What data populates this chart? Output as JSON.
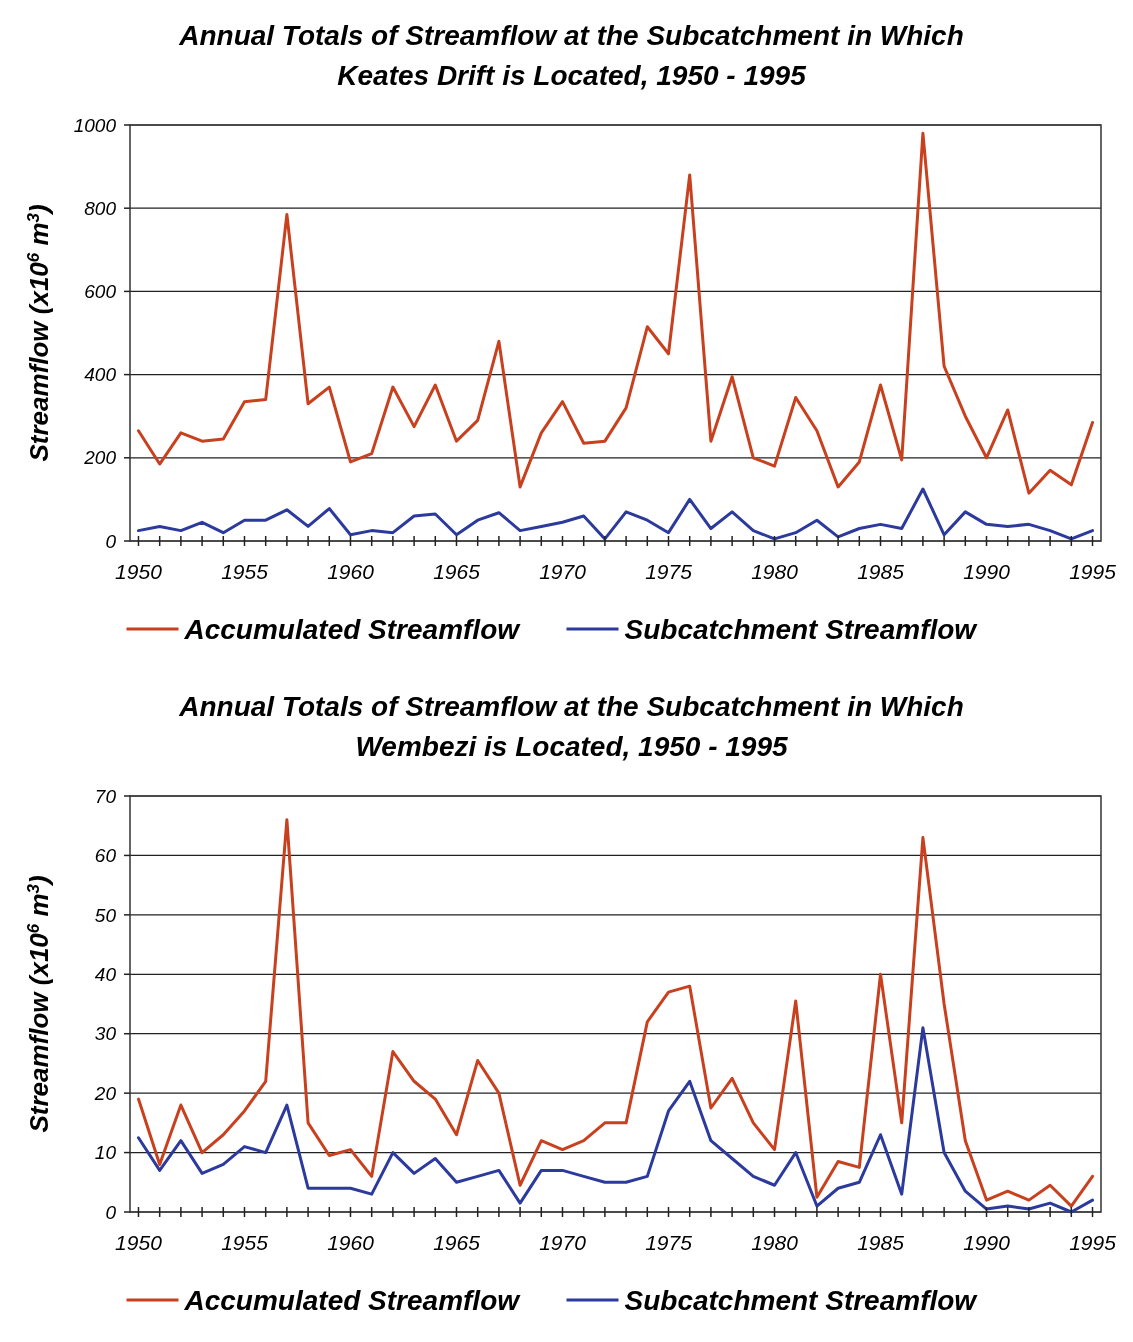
{
  "chart_data": [
    {
      "type": "line",
      "title": "Annual Totals of Streamflow at the Subcatchment in Which Keates Drift is Located, 1950 - 1995",
      "ylabel": "Streamflow (x10$^{6}$ m$^{3}$)",
      "x": [
        1950,
        1951,
        1952,
        1953,
        1954,
        1955,
        1956,
        1957,
        1958,
        1959,
        1960,
        1961,
        1962,
        1963,
        1964,
        1965,
        1966,
        1967,
        1968,
        1969,
        1970,
        1971,
        1972,
        1973,
        1974,
        1975,
        1976,
        1977,
        1978,
        1979,
        1980,
        1981,
        1982,
        1983,
        1984,
        1985,
        1986,
        1987,
        1988,
        1989,
        1990,
        1991,
        1992,
        1993,
        1994,
        1995
      ],
      "series": [
        {
          "name": "Accumulated Streamflow",
          "color": "#c8401e",
          "values": [
            265,
            185,
            260,
            240,
            245,
            335,
            340,
            785,
            330,
            370,
            190,
            210,
            370,
            275,
            375,
            240,
            290,
            480,
            130,
            260,
            335,
            235,
            240,
            320,
            515,
            450,
            880,
            240,
            395,
            200,
            180,
            345,
            265,
            130,
            190,
            375,
            195,
            980,
            420,
            300,
            200,
            315,
            115,
            170,
            135,
            285
          ]
        },
        {
          "name": "Subcatchment Streamflow",
          "color": "#2b3a9c",
          "values": [
            25,
            35,
            25,
            45,
            20,
            50,
            50,
            75,
            35,
            78,
            15,
            25,
            20,
            60,
            65,
            15,
            50,
            68,
            25,
            35,
            45,
            60,
            5,
            70,
            50,
            20,
            100,
            30,
            70,
            25,
            5,
            20,
            50,
            10,
            30,
            40,
            30,
            125,
            15,
            70,
            40,
            35,
            40,
            25,
            5,
            25
          ]
        }
      ],
      "xlim": [
        1949.6,
        1995.4
      ],
      "xticks": [
        1950,
        {
          "value": 1951,
          "label": null
        },
        {
          "value": 1952,
          "label": null
        },
        {
          "value": 1953,
          "label": null
        },
        {
          "value": 1954,
          "label": null
        },
        1955,
        {
          "value": 1956,
          "label": null
        },
        {
          "value": 1957,
          "label": null
        },
        {
          "value": 1958,
          "label": null
        },
        {
          "value": 1959,
          "label": null
        },
        1960,
        {
          "value": 1961,
          "label": null
        },
        {
          "value": 1962,
          "label": null
        },
        {
          "value": 1963,
          "label": null
        },
        {
          "value": 1964,
          "label": null
        },
        1965,
        {
          "value": 1966,
          "label": null
        },
        {
          "value": 1967,
          "label": null
        },
        {
          "value": 1968,
          "label": null
        },
        {
          "value": 1969,
          "label": null
        },
        1970,
        {
          "value": 1971,
          "label": null
        },
        {
          "value": 1972,
          "label": null
        },
        {
          "value": 1973,
          "label": null
        },
        {
          "value": 1974,
          "label": null
        },
        1975,
        {
          "value": 1976,
          "label": null
        },
        {
          "value": 1977,
          "label": null
        },
        {
          "value": 1978,
          "label": null
        },
        {
          "value": 1979,
          "label": null
        },
        1980,
        {
          "value": 1981,
          "label": null
        },
        {
          "value": 1982,
          "label": null
        },
        {
          "value": 1983,
          "label": null
        },
        {
          "value": 1984,
          "label": null
        },
        1985,
        {
          "value": 1986,
          "label": null
        },
        {
          "value": 1987,
          "label": null
        },
        {
          "value": 1988,
          "label": null
        },
        {
          "value": 1989,
          "label": null
        },
        1990,
        {
          "value": 1991,
          "label": null
        },
        {
          "value": 1992,
          "label": null
        },
        {
          "value": 1993,
          "label": null
        },
        {
          "value": 1994,
          "label": null
        },
        1995
      ],
      "ylim": [
        0,
        1000
      ],
      "yticks": [
        0,
        200,
        400,
        600,
        800,
        1000
      ],
      "grid": "y",
      "legend": "bottom",
      "marker": "none",
      "line_style": "solid"
    },
    {
      "type": "line",
      "title": "Annual Totals of Streamflow at the Subcatchment in Which Wembezi is Located, 1950 - 1995",
      "ylabel": "Streamflow (x10$^{6}$ m$^{3}$)",
      "x": [
        1950,
        1951,
        1952,
        1953,
        1954,
        1955,
        1956,
        1957,
        1958,
        1959,
        1960,
        1961,
        1962,
        1963,
        1964,
        1965,
        1966,
        1967,
        1968,
        1969,
        1970,
        1971,
        1972,
        1973,
        1974,
        1975,
        1976,
        1977,
        1978,
        1979,
        1980,
        1981,
        1982,
        1983,
        1984,
        1985,
        1986,
        1987,
        1988,
        1989,
        1990,
        1991,
        1992,
        1993,
        1994,
        1995
      ],
      "series": [
        {
          "name": "Accumulated Streamflow",
          "color": "#c8401e",
          "values": [
            19,
            8,
            18,
            10,
            13,
            17,
            22,
            66,
            15,
            9.5,
            10.5,
            6,
            27,
            22,
            19,
            13,
            25.5,
            20,
            4.5,
            12,
            10.5,
            12,
            15,
            15,
            32,
            37,
            38,
            17.5,
            22.5,
            15,
            10.5,
            35.5,
            2.5,
            8.5,
            7.5,
            40,
            15,
            63,
            35,
            12,
            2,
            3.5,
            2,
            4.5,
            1,
            6
          ]
        },
        {
          "name": "Subcatchment Streamflow",
          "color": "#2b3a9c",
          "values": [
            12.5,
            7,
            12,
            6.5,
            8,
            11,
            10,
            18,
            4,
            4,
            4,
            3,
            10,
            6.5,
            9,
            5,
            6,
            7,
            1.5,
            7,
            7,
            6,
            5,
            5,
            6,
            17,
            22,
            12,
            9,
            6,
            4.5,
            10,
            1,
            4,
            5,
            13,
            3,
            31,
            10,
            3.5,
            0.5,
            1,
            0.5,
            1.5,
            0,
            2
          ]
        }
      ],
      "xlim": [
        1949.6,
        1995.4
      ],
      "xticks": [
        1950,
        {
          "value": 1951,
          "label": null
        },
        {
          "value": 1952,
          "label": null
        },
        {
          "value": 1953,
          "label": null
        },
        {
          "value": 1954,
          "label": null
        },
        1955,
        {
          "value": 1956,
          "label": null
        },
        {
          "value": 1957,
          "label": null
        },
        {
          "value": 1958,
          "label": null
        },
        {
          "value": 1959,
          "label": null
        },
        1960,
        {
          "value": 1961,
          "label": null
        },
        {
          "value": 1962,
          "label": null
        },
        {
          "value": 1963,
          "label": null
        },
        {
          "value": 1964,
          "label": null
        },
        1965,
        {
          "value": 1966,
          "label": null
        },
        {
          "value": 1967,
          "label": null
        },
        {
          "value": 1968,
          "label": null
        },
        {
          "value": 1969,
          "label": null
        },
        1970,
        {
          "value": 1971,
          "label": null
        },
        {
          "value": 1972,
          "label": null
        },
        {
          "value": 1973,
          "label": null
        },
        {
          "value": 1974,
          "label": null
        },
        1975,
        {
          "value": 1976,
          "label": null
        },
        {
          "value": 1977,
          "label": null
        },
        {
          "value": 1978,
          "label": null
        },
        {
          "value": 1979,
          "label": null
        },
        1980,
        {
          "value": 1981,
          "label": null
        },
        {
          "value": 1982,
          "label": null
        },
        {
          "value": 1983,
          "label": null
        },
        {
          "value": 1984,
          "label": null
        },
        1985,
        {
          "value": 1986,
          "label": null
        },
        {
          "value": 1987,
          "label": null
        },
        {
          "value": 1988,
          "label": null
        },
        {
          "value": 1989,
          "label": null
        },
        1990,
        {
          "value": 1991,
          "label": null
        },
        {
          "value": 1992,
          "label": null
        },
        {
          "value": 1993,
          "label": null
        },
        {
          "value": 1994,
          "label": null
        },
        1995
      ],
      "ylim": [
        0,
        70
      ],
      "yticks": [
        0,
        10,
        20,
        30,
        40,
        50,
        60,
        70
      ],
      "grid": "y",
      "legend": "bottom",
      "marker": "none",
      "line_style": "solid"
    }
  ]
}
